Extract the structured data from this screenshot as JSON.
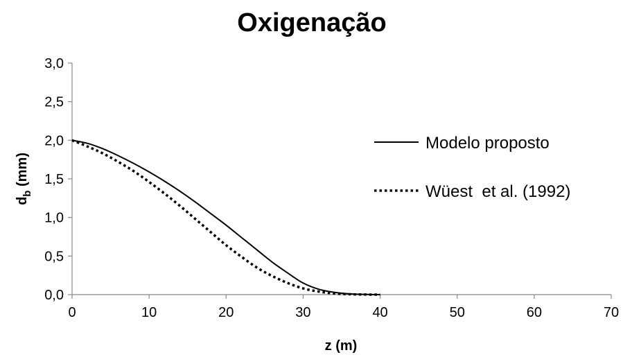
{
  "chart_data": {
    "type": "line",
    "title": "Oxigenação",
    "xlabel": "z (m)",
    "ylabel": {
      "main": "d",
      "sub": "b",
      "unit": " (mm)"
    },
    "xlim": [
      0,
      70
    ],
    "ylim": [
      0,
      3
    ],
    "xticks": [
      "0",
      "10",
      "20",
      "30",
      "40",
      "50",
      "60",
      "70"
    ],
    "yticks": [
      "0,0",
      "0,5",
      "1,0",
      "1,5",
      "2,0",
      "2,5",
      "3,0"
    ],
    "grid": false,
    "legend_position": "right",
    "series": [
      {
        "name": "Modelo proposto",
        "style": "solid",
        "color": "#000000",
        "x": [
          0,
          2,
          4,
          6,
          8,
          10,
          12,
          14,
          16,
          18,
          20,
          22,
          24,
          26,
          28,
          30,
          32,
          34,
          36,
          38,
          40
        ],
        "y": [
          2.0,
          1.96,
          1.89,
          1.8,
          1.7,
          1.59,
          1.47,
          1.34,
          1.2,
          1.05,
          0.9,
          0.74,
          0.58,
          0.42,
          0.28,
          0.15,
          0.07,
          0.03,
          0.01,
          0.003,
          0.0
        ]
      },
      {
        "name": "Wüest  et al. (1992)",
        "style": "dotted",
        "color": "#000000",
        "x": [
          0,
          2,
          4,
          6,
          8,
          10,
          12,
          14,
          16,
          18,
          20,
          22,
          24,
          26,
          28,
          30,
          32,
          34,
          36,
          38,
          40
        ],
        "y": [
          2.0,
          1.92,
          1.83,
          1.72,
          1.6,
          1.46,
          1.31,
          1.15,
          0.98,
          0.81,
          0.64,
          0.49,
          0.35,
          0.24,
          0.15,
          0.08,
          0.04,
          0.015,
          0.005,
          0.001,
          0.0
        ]
      }
    ]
  }
}
